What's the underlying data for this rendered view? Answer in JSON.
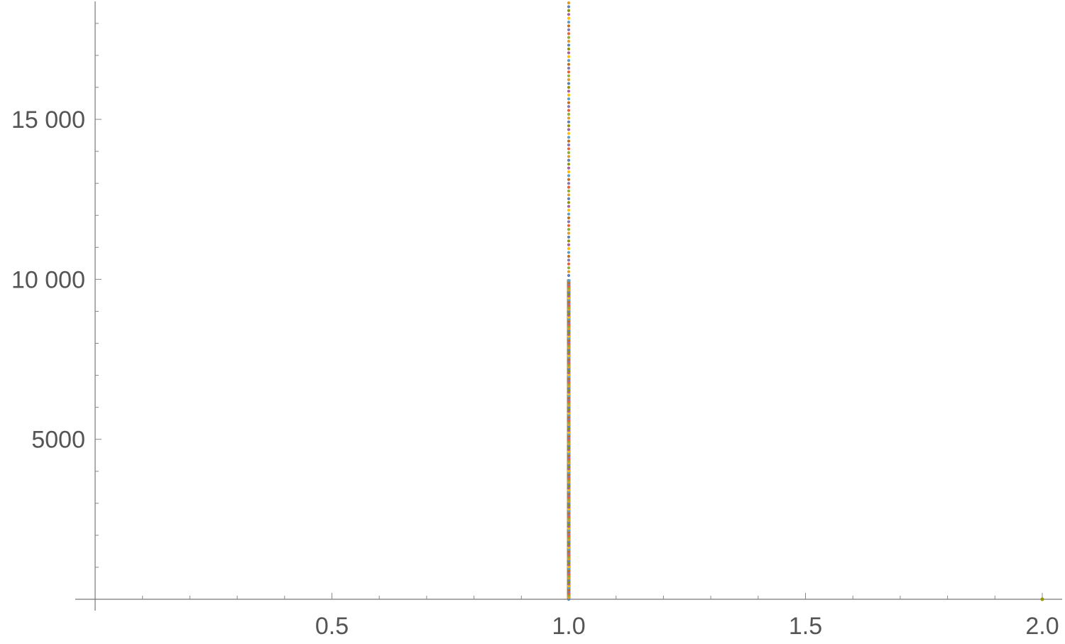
{
  "chart_data": {
    "type": "scatter",
    "title": "",
    "xlabel": "",
    "ylabel": "",
    "xlim": [
      0,
      2.0
    ],
    "ylim": [
      0,
      18700
    ],
    "grid": false,
    "legend": "none",
    "x_ticks": [
      {
        "value": 0.5,
        "label": "0.5"
      },
      {
        "value": 1.0,
        "label": "1.0"
      },
      {
        "value": 1.5,
        "label": "1.5"
      },
      {
        "value": 2.0,
        "label": "2.0"
      }
    ],
    "y_ticks": [
      {
        "value": 5000,
        "label": "5000"
      },
      {
        "value": 10000,
        "label": "10 000"
      },
      {
        "value": 15000,
        "label": "15 000"
      }
    ],
    "x_minor_step": 0.1,
    "y_minor_step": 1000,
    "series": [
      {
        "x": 1.0,
        "y_start": 0,
        "y_end": 18700,
        "dense_until": 10000,
        "sparse_step": 120,
        "description_colors": [
          "#5E81B5",
          "#E19C24",
          "#8FB032",
          "#EB6235",
          "#8778B3",
          "#C56E1A",
          "#5D9EC7",
          "#FFBF00",
          "#A5609D",
          "#929600"
        ]
      },
      {
        "x": 2.0,
        "y": 0,
        "color": "#929600"
      }
    ]
  }
}
